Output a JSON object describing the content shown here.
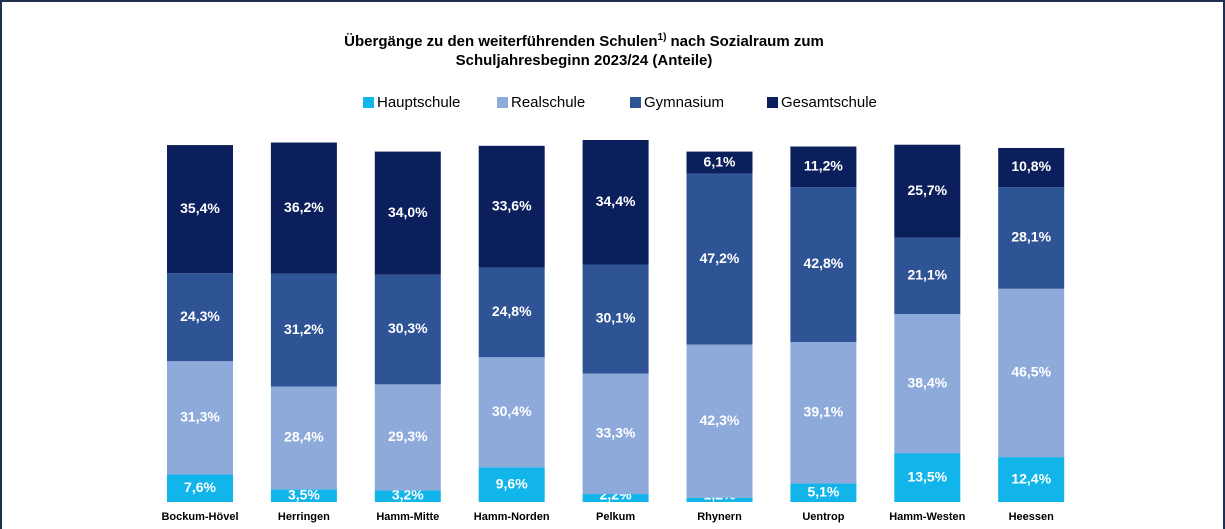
{
  "chart_data": {
    "type": "stacked_bar",
    "title": [
      "Übergänge zu den weiterführenden Schulen",
      "1)",
      "nach Sozialraum zum",
      "Schuljahresbeginn 2023/24 (Anteile)"
    ],
    "categories": [
      "Bockum-Hövel",
      "Herringen",
      "Hamm-Mitte",
      "Hamm-Norden",
      "Pelkum",
      "Rhynern",
      "Uentrop",
      "Hamm-Westen",
      "Heessen"
    ],
    "ylim": [
      0,
      100
    ],
    "series": [
      {
        "name": "Hauptschule",
        "color": "#11b5ea",
        "values": [
          7.6,
          3.5,
          3.2,
          9.6,
          2.2,
          1.2,
          5.1,
          13.5,
          12.4
        ],
        "value_labels": [
          "7,6%",
          "3,5%",
          "3,2%",
          "9,6%",
          "2,2%",
          "1,2%",
          "5,1%",
          "13,5%",
          "12,4%"
        ]
      },
      {
        "name": "Realschule",
        "color": "#8eaadb",
        "values": [
          31.3,
          28.4,
          29.3,
          30.4,
          33.3,
          42.3,
          39.1,
          38.4,
          46.5
        ],
        "value_labels": [
          "31,3%",
          "28,4%",
          "29,3%",
          "30,4%",
          "33,3%",
          "42,3%",
          "39,1%",
          "38,4%",
          "46,5%"
        ]
      },
      {
        "name": "Gymnasium",
        "color": "#2f5496",
        "values": [
          24.3,
          31.2,
          30.3,
          24.8,
          30.1,
          47.2,
          42.8,
          21.1,
          28.1
        ],
        "value_labels": [
          "24,3%",
          "31,2%",
          "30,3%",
          "24,8%",
          "30,1%",
          "47,2%",
          "42,8%",
          "21,1%",
          "28,1%"
        ]
      },
      {
        "name": "Gesamtschule",
        "color": "#0b1f5c",
        "values": [
          35.4,
          36.2,
          34.0,
          33.6,
          34.4,
          6.1,
          11.2,
          25.7,
          10.8
        ],
        "value_labels": [
          "35,4%",
          "36,2%",
          "34,0%",
          "33,6%",
          "34,4%",
          "6,1%",
          "11,2%",
          "25,7%",
          "10,8%"
        ]
      }
    ]
  }
}
